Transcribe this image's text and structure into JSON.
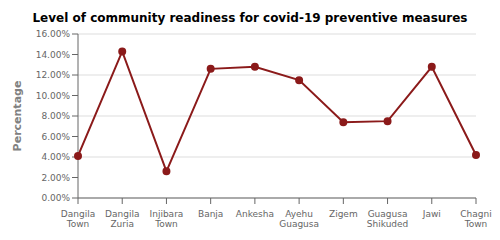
{
  "chart_data": {
    "type": "line",
    "title": "Level of community readiness for covid-19 preventive measures",
    "ylabel": "Percentage",
    "categories": [
      "Dangila\nTown",
      "Dangila\nZuria",
      "Injibara\nTown",
      "Banja",
      "Ankesha",
      "Ayehu\nGuagusa",
      "Zigem",
      "Guagusa\nShikuded",
      "Jawi",
      "Chagni\nTown"
    ],
    "values": [
      0.041,
      0.143,
      0.026,
      0.126,
      0.128,
      0.115,
      0.074,
      0.075,
      0.128,
      0.042
    ],
    "color": "#8B1A1A",
    "marker": "circle",
    "ylim": [
      0.0,
      0.16
    ],
    "yticks": [
      {
        "value": 0.0,
        "label": "0.00%"
      },
      {
        "value": 0.02,
        "label": "2.00%"
      },
      {
        "value": 0.04,
        "label": "4.00%"
      },
      {
        "value": 0.06,
        "label": "6.00%"
      },
      {
        "value": 0.08,
        "label": "8.00%"
      },
      {
        "value": 0.1,
        "label": "10.00%"
      },
      {
        "value": 0.12,
        "label": "12.00%"
      },
      {
        "value": 0.14,
        "label": "14.00%"
      },
      {
        "value": 0.16,
        "label": "16.00%"
      }
    ],
    "grid": true
  }
}
